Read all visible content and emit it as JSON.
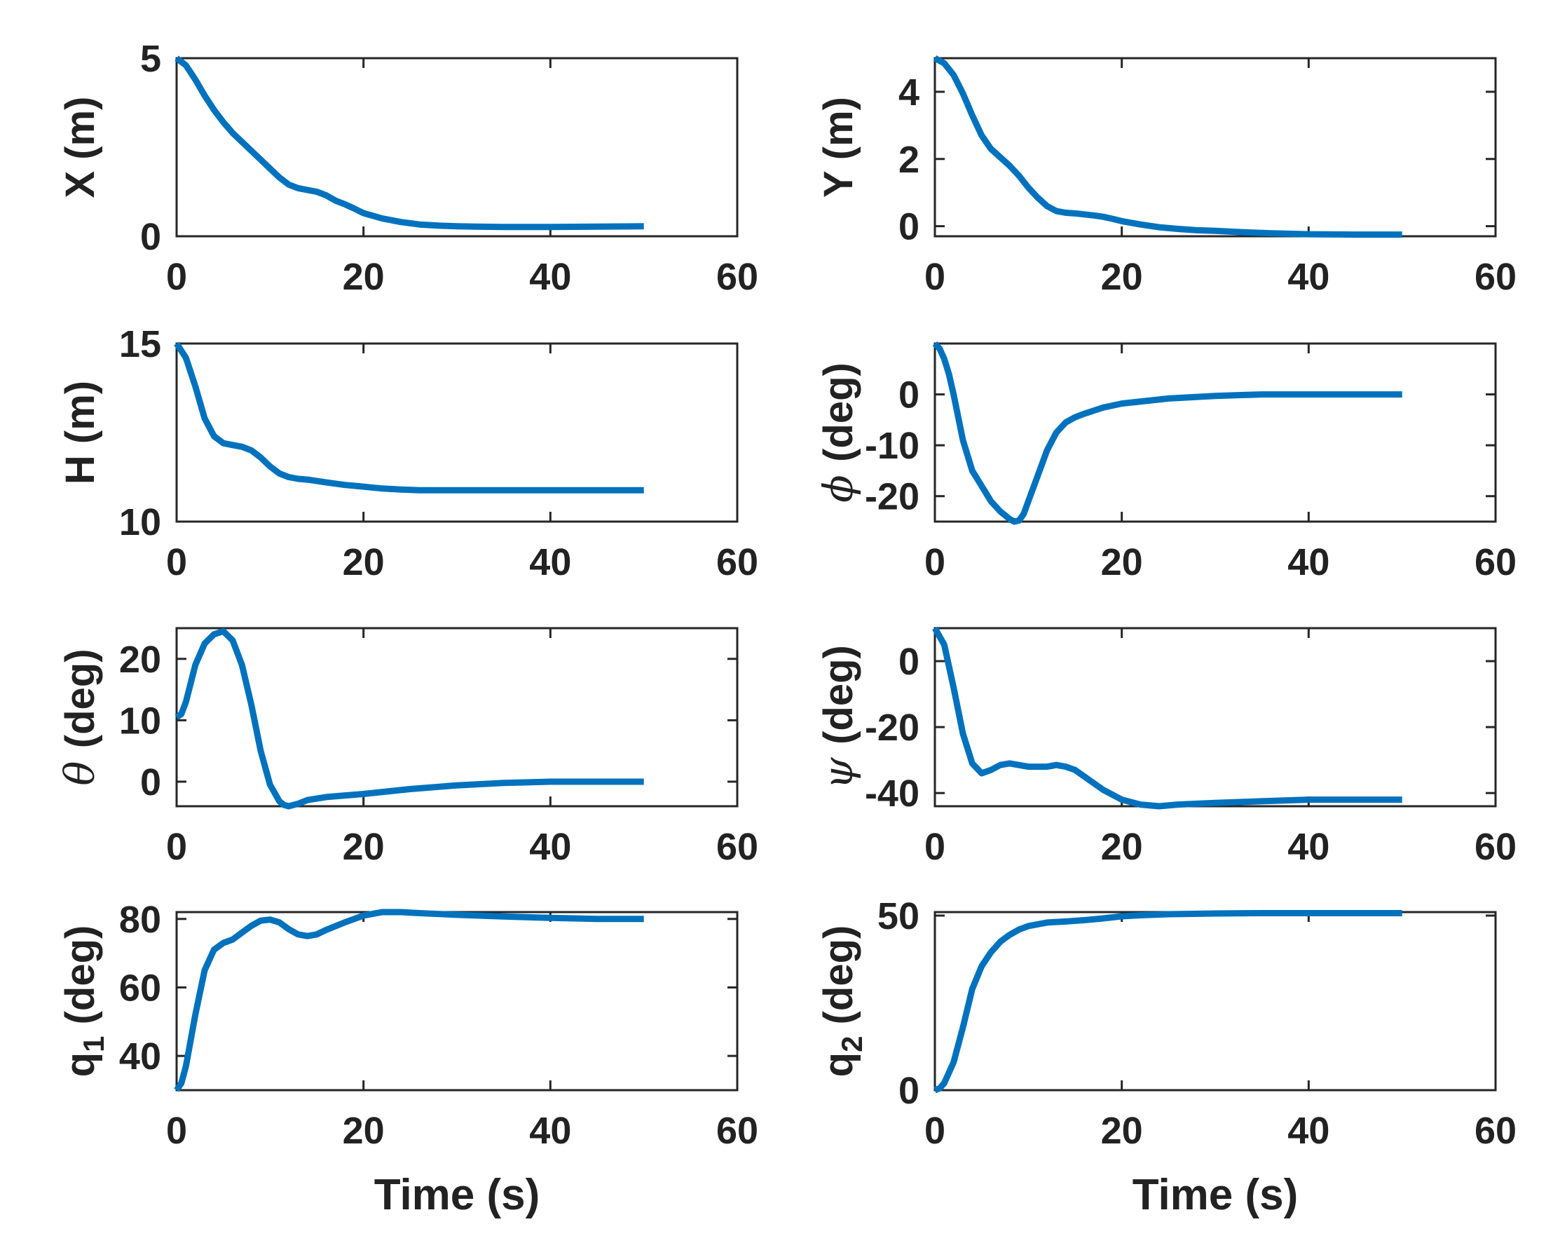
{
  "chart_data": [
    {
      "type": "line",
      "id": "X",
      "ylabel": "X (m)",
      "xlabel": "",
      "xlim": [
        0,
        60
      ],
      "ylim": [
        0,
        5
      ],
      "xticks": [
        0,
        20,
        40,
        60
      ],
      "yticks": [
        0,
        5
      ],
      "series": [
        {
          "name": "X",
          "color": "#0072BD",
          "x": [
            0,
            1,
            2,
            3,
            4,
            5,
            6,
            7,
            8,
            9,
            10,
            11,
            12,
            13,
            14,
            15,
            16,
            17,
            18,
            19,
            20,
            22,
            24,
            26,
            28,
            30,
            32,
            35,
            40,
            45,
            50
          ],
          "y": [
            5,
            4.8,
            4.4,
            3.95,
            3.55,
            3.2,
            2.9,
            2.65,
            2.4,
            2.15,
            1.9,
            1.65,
            1.45,
            1.35,
            1.3,
            1.25,
            1.15,
            1.0,
            0.9,
            0.78,
            0.65,
            0.5,
            0.4,
            0.33,
            0.3,
            0.28,
            0.27,
            0.26,
            0.26,
            0.27,
            0.28
          ]
        }
      ]
    },
    {
      "type": "line",
      "id": "Y",
      "ylabel": "Y (m)",
      "xlabel": "",
      "xlim": [
        0,
        60
      ],
      "ylim": [
        -0.3,
        5
      ],
      "xticks": [
        0,
        20,
        40,
        60
      ],
      "yticks": [
        0,
        2,
        4
      ],
      "series": [
        {
          "name": "Y",
          "color": "#0072BD",
          "x": [
            0,
            1,
            2,
            3,
            4,
            5,
            6,
            7,
            8,
            9,
            10,
            11,
            12,
            13,
            14,
            15,
            16,
            17,
            18,
            19,
            20,
            22,
            24,
            26,
            28,
            30,
            33,
            36,
            40,
            45,
            50
          ],
          "y": [
            5,
            4.85,
            4.5,
            3.95,
            3.3,
            2.7,
            2.3,
            2.05,
            1.8,
            1.5,
            1.15,
            0.85,
            0.6,
            0.45,
            0.4,
            0.38,
            0.35,
            0.32,
            0.28,
            0.22,
            0.15,
            0.05,
            -0.03,
            -0.08,
            -0.12,
            -0.14,
            -0.18,
            -0.21,
            -0.24,
            -0.25,
            -0.25
          ]
        }
      ]
    },
    {
      "type": "line",
      "id": "H",
      "ylabel": "H (m)",
      "xlabel": "",
      "xlim": [
        0,
        60
      ],
      "ylim": [
        10,
        15
      ],
      "xticks": [
        0,
        20,
        40,
        60
      ],
      "yticks": [
        10,
        15
      ],
      "series": [
        {
          "name": "H",
          "color": "#0072BD",
          "x": [
            0,
            1,
            2,
            3,
            4,
            5,
            6,
            7,
            8,
            9,
            10,
            11,
            12,
            13,
            14,
            16,
            18,
            20,
            22,
            24,
            26,
            28,
            30,
            35,
            40,
            45,
            50
          ],
          "y": [
            15,
            14.6,
            13.8,
            12.9,
            12.4,
            12.2,
            12.15,
            12.1,
            12.0,
            11.8,
            11.55,
            11.35,
            11.25,
            11.2,
            11.18,
            11.1,
            11.03,
            10.98,
            10.93,
            10.9,
            10.88,
            10.88,
            10.88,
            10.88,
            10.88,
            10.88,
            10.88
          ]
        }
      ]
    },
    {
      "type": "line",
      "id": "phi",
      "ylabel": "(deg)",
      "ylabel_symbol": "ϕ",
      "xlabel": "",
      "xlim": [
        0,
        60
      ],
      "ylim": [
        -25,
        10
      ],
      "xticks": [
        0,
        20,
        40,
        60
      ],
      "yticks": [
        -20,
        -10,
        0
      ],
      "series": [
        {
          "name": "phi",
          "color": "#0072BD",
          "x": [
            0,
            0.5,
            1,
            1.5,
            2,
            3,
            4,
            5,
            6,
            7,
            8,
            8.5,
            9,
            9.5,
            10,
            11,
            12,
            13,
            14,
            15,
            16,
            18,
            20,
            25,
            30,
            35,
            40,
            45,
            50
          ],
          "y": [
            10,
            9,
            7,
            4,
            0,
            -9,
            -15,
            -18,
            -21,
            -23,
            -24.5,
            -25,
            -24.8,
            -23.5,
            -21,
            -16,
            -11,
            -7.5,
            -5.5,
            -4.5,
            -3.8,
            -2.6,
            -1.8,
            -0.8,
            -0.3,
            0,
            0,
            0,
            0
          ]
        }
      ]
    },
    {
      "type": "line",
      "id": "theta",
      "ylabel": "(deg)",
      "ylabel_symbol": "θ",
      "xlabel": "",
      "xlim": [
        0,
        60
      ],
      "ylim": [
        -4,
        25
      ],
      "xticks": [
        0,
        20,
        40,
        60
      ],
      "yticks": [
        0,
        10,
        20
      ],
      "series": [
        {
          "name": "theta",
          "color": "#0072BD",
          "x": [
            0,
            0.5,
            1,
            2,
            3,
            4,
            5,
            6,
            7,
            8,
            9,
            10,
            11,
            11.5,
            12,
            12.5,
            13,
            14,
            16,
            20,
            25,
            30,
            35,
            40,
            45,
            50
          ],
          "y": [
            10.5,
            11,
            13,
            19,
            22.5,
            24,
            24.5,
            23,
            19,
            12.5,
            5,
            -0.5,
            -3.2,
            -3.8,
            -4,
            -3.8,
            -3.6,
            -3,
            -2.5,
            -2,
            -1.2,
            -0.6,
            -0.2,
            0,
            0,
            0
          ]
        }
      ]
    },
    {
      "type": "line",
      "id": "psi",
      "ylabel": "(deg)",
      "ylabel_symbol": "ψ",
      "xlabel": "",
      "xlim": [
        0,
        60
      ],
      "ylim": [
        -44,
        10
      ],
      "xticks": [
        0,
        20,
        40,
        60
      ],
      "yticks": [
        -40,
        -20,
        0
      ],
      "series": [
        {
          "name": "psi",
          "color": "#0072BD",
          "x": [
            0,
            1,
            2,
            3,
            4,
            5,
            6,
            7,
            8,
            10,
            12,
            13,
            14,
            15,
            16,
            18,
            20,
            22,
            24,
            26,
            30,
            35,
            40,
            45,
            50
          ],
          "y": [
            10,
            5,
            -8,
            -22,
            -31,
            -34,
            -33,
            -31.5,
            -31,
            -32,
            -32,
            -31.5,
            -32,
            -33,
            -35,
            -39,
            -42,
            -43.5,
            -44,
            -43.5,
            -43,
            -42.5,
            -42,
            -42,
            -42
          ]
        }
      ]
    },
    {
      "type": "line",
      "id": "q1",
      "ylabel": "q",
      "ylabel_subscript": "1",
      "ylabel_unit": "(deg)",
      "xlabel": "Time (s)",
      "xlim": [
        0,
        60
      ],
      "ylim": [
        30,
        82
      ],
      "xticks": [
        0,
        20,
        40,
        60
      ],
      "yticks": [
        40,
        60,
        80
      ],
      "series": [
        {
          "name": "q1",
          "color": "#0072BD",
          "x": [
            0,
            0.5,
            1,
            2,
            3,
            4,
            5,
            6,
            7,
            8,
            9,
            10,
            11,
            12,
            13,
            14,
            15,
            16,
            18,
            20,
            22,
            24,
            26,
            30,
            35,
            40,
            45,
            50
          ],
          "y": [
            30,
            32,
            37,
            52,
            65,
            71,
            73,
            74,
            76,
            78,
            79.5,
            79.8,
            79,
            77,
            75.5,
            75,
            75.5,
            76.8,
            79,
            81,
            82,
            82,
            81.7,
            81.2,
            80.7,
            80.3,
            80,
            80
          ]
        }
      ]
    },
    {
      "type": "line",
      "id": "q2",
      "ylabel": "q",
      "ylabel_subscript": "2",
      "ylabel_unit": "(deg)",
      "xlabel": "Time (s)",
      "xlim": [
        0,
        60
      ],
      "ylim": [
        0,
        51
      ],
      "xticks": [
        0,
        20,
        40,
        60
      ],
      "yticks": [
        0,
        50
      ],
      "series": [
        {
          "name": "q2",
          "color": "#0072BD",
          "x": [
            0,
            0.5,
            1,
            2,
            3,
            4,
            5,
            6,
            7,
            8,
            9,
            10,
            12,
            14,
            16,
            18,
            20,
            22,
            25,
            30,
            35,
            40,
            45,
            50
          ],
          "y": [
            0,
            0.5,
            2,
            8,
            18,
            29,
            35.5,
            39.5,
            42.5,
            44.5,
            46,
            47,
            48,
            48.3,
            48.7,
            49.2,
            49.8,
            50.1,
            50.4,
            50.6,
            50.7,
            50.7,
            50.7,
            50.7
          ]
        }
      ]
    }
  ]
}
